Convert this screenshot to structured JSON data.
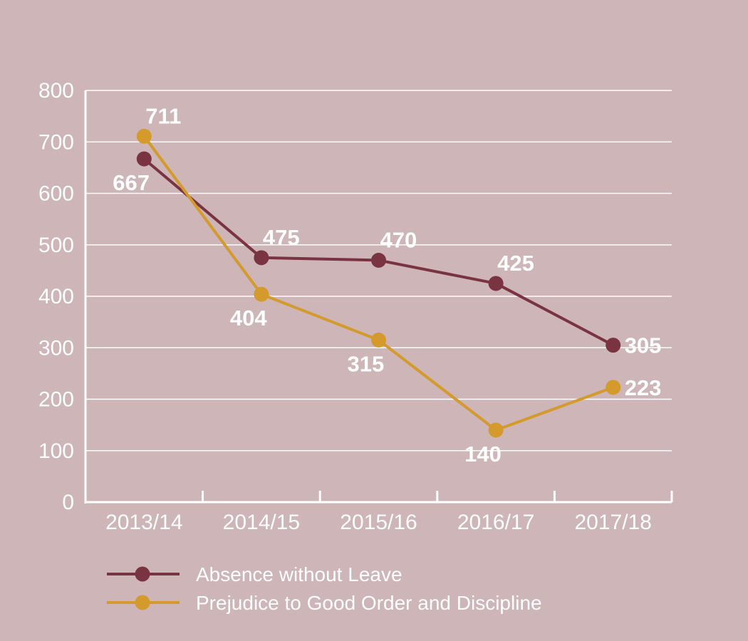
{
  "chart_data": {
    "type": "line",
    "categories": [
      "2013/14",
      "2014/15",
      "2015/16",
      "2016/17",
      "2017/18"
    ],
    "ylim": [
      0,
      800
    ],
    "yticks": [
      0,
      100,
      200,
      300,
      400,
      500,
      600,
      700,
      800
    ],
    "grid": true,
    "legend_position": "bottom-left",
    "series": [
      {
        "name": "Absence without Leave",
        "color": "#7a3340",
        "values": [
          667,
          475,
          470,
          425,
          305
        ],
        "labels": [
          "667",
          "475",
          "470",
          "425",
          "305"
        ]
      },
      {
        "name": "Prejudice to Good Order and Discipline",
        "color": "#d49a2c",
        "values": [
          711,
          404,
          315,
          140,
          223
        ],
        "labels": [
          "711",
          "404",
          "315",
          "140",
          "223"
        ]
      }
    ]
  }
}
